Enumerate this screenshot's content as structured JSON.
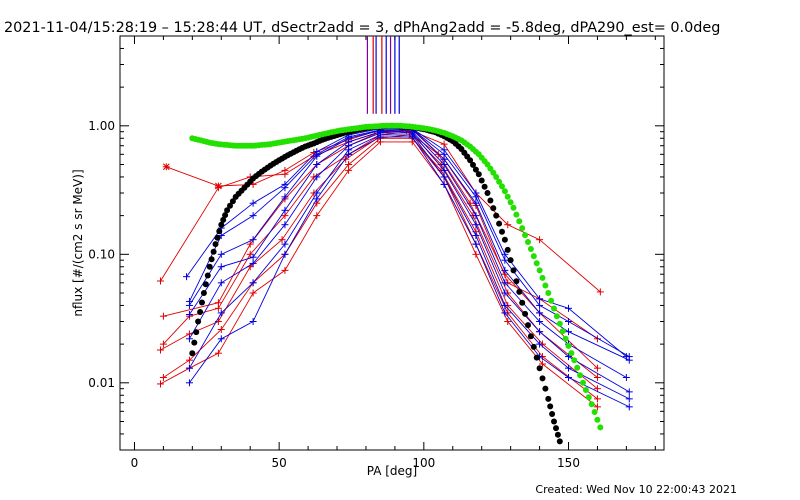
{
  "header": {
    "title": "2021-11-04/15:28:19 – 15:28:44 UT, dSectr2add = 3, dPhAng2add = -5.8deg, dPA290_est=  0.0deg"
  },
  "footer": {
    "created": "Created: Wed Nov 10 22:00:43 2021"
  },
  "colors": {
    "red": "#e00000",
    "blue": "#0000e0",
    "black": "#000000",
    "green": "#22e000",
    "purple": "#7a00a0"
  },
  "chart_data": {
    "type": "line",
    "xlabel": "PA [deg]",
    "ylabel": "nflux [#/(cm2 s sr MeV)]",
    "xlim": [
      -5,
      183
    ],
    "ylim": [
      0.003,
      5.0
    ],
    "yscale": "log",
    "xticks": [
      0,
      50,
      100,
      150
    ],
    "xtick_labels": [
      "0",
      "50",
      "100",
      "150"
    ],
    "yticks": [
      0.01,
      0.1,
      1.0
    ],
    "ytick_labels": [
      "0.01",
      "0.10",
      "1.00"
    ],
    "vertical_lines": [
      {
        "x": 80.5,
        "color": "purple"
      },
      {
        "x": 82.5,
        "color": "red"
      },
      {
        "x": 83.5,
        "color": "blue"
      },
      {
        "x": 85.5,
        "color": "red"
      },
      {
        "x": 87.0,
        "color": "blue"
      },
      {
        "x": 88.5,
        "color": "purple"
      },
      {
        "x": 90.0,
        "color": "blue"
      },
      {
        "x": 91.5,
        "color": "blue"
      }
    ],
    "black_curve": [
      [
        20,
        0.017
      ],
      [
        22,
        0.03
      ],
      [
        24,
        0.05
      ],
      [
        26,
        0.08
      ],
      [
        28,
        0.12
      ],
      [
        30,
        0.17
      ],
      [
        32,
        0.22
      ],
      [
        35,
        0.28
      ],
      [
        38,
        0.33
      ],
      [
        41,
        0.39
      ],
      [
        44,
        0.44
      ],
      [
        47,
        0.49
      ],
      [
        50,
        0.54
      ],
      [
        53,
        0.59
      ],
      [
        56,
        0.64
      ],
      [
        59,
        0.69
      ],
      [
        62,
        0.73
      ],
      [
        65,
        0.78
      ],
      [
        68,
        0.82
      ],
      [
        71,
        0.86
      ],
      [
        74,
        0.9
      ],
      [
        77,
        0.93
      ],
      [
        80,
        0.96
      ],
      [
        83,
        0.98
      ],
      [
        86,
        0.99
      ],
      [
        89,
        1.0
      ],
      [
        92,
        0.99
      ],
      [
        95,
        0.98
      ],
      [
        98,
        0.96
      ],
      [
        101,
        0.93
      ],
      [
        104,
        0.89
      ],
      [
        107,
        0.83
      ],
      [
        110,
        0.76
      ],
      [
        113,
        0.66
      ],
      [
        116,
        0.54
      ],
      [
        119,
        0.42
      ],
      [
        122,
        0.3
      ],
      [
        125,
        0.2
      ],
      [
        128,
        0.13
      ],
      [
        131,
        0.075
      ],
      [
        134,
        0.042
      ],
      [
        137,
        0.023
      ],
      [
        140,
        0.013
      ],
      [
        143,
        0.0075
      ],
      [
        145,
        0.005
      ],
      [
        147,
        0.0035
      ]
    ],
    "green_curve": [
      [
        20,
        0.8
      ],
      [
        23,
        0.77
      ],
      [
        26,
        0.74
      ],
      [
        29,
        0.72
      ],
      [
        32,
        0.71
      ],
      [
        35,
        0.7
      ],
      [
        38,
        0.7
      ],
      [
        41,
        0.7
      ],
      [
        44,
        0.71
      ],
      [
        47,
        0.72
      ],
      [
        50,
        0.74
      ],
      [
        53,
        0.76
      ],
      [
        56,
        0.78
      ],
      [
        59,
        0.8
      ],
      [
        62,
        0.83
      ],
      [
        65,
        0.86
      ],
      [
        68,
        0.89
      ],
      [
        71,
        0.92
      ],
      [
        74,
        0.94
      ],
      [
        77,
        0.96
      ],
      [
        80,
        0.98
      ],
      [
        83,
        0.99
      ],
      [
        86,
        1.0
      ],
      [
        89,
        1.0
      ],
      [
        92,
        1.0
      ],
      [
        95,
        0.99
      ],
      [
        98,
        0.97
      ],
      [
        101,
        0.95
      ],
      [
        104,
        0.92
      ],
      [
        107,
        0.88
      ],
      [
        110,
        0.83
      ],
      [
        113,
        0.77
      ],
      [
        116,
        0.69
      ],
      [
        119,
        0.6
      ],
      [
        122,
        0.5
      ],
      [
        125,
        0.4
      ],
      [
        128,
        0.31
      ],
      [
        131,
        0.23
      ],
      [
        134,
        0.16
      ],
      [
        137,
        0.11
      ],
      [
        140,
        0.075
      ],
      [
        143,
        0.05
      ],
      [
        146,
        0.033
      ],
      [
        149,
        0.022
      ],
      [
        152,
        0.015
      ],
      [
        155,
        0.01
      ],
      [
        158,
        0.0068
      ],
      [
        161,
        0.0045
      ]
    ],
    "series": [
      {
        "color": "red",
        "points": [
          [
            11,
            0.48
          ],
          [
            29,
            0.34
          ],
          [
            41,
            0.35
          ],
          [
            52,
            0.45
          ],
          [
            62,
            0.62
          ],
          [
            74,
            0.78
          ],
          [
            85,
            0.93
          ],
          [
            95,
            0.93
          ],
          [
            107,
            0.72
          ],
          [
            118,
            0.3
          ],
          [
            129,
            0.17
          ],
          [
            140,
            0.13
          ],
          [
            161,
            0.051
          ]
        ]
      },
      {
        "color": "red",
        "points": [
          [
            9,
            0.062
          ],
          [
            29,
            0.33
          ],
          [
            40,
            0.4
          ],
          [
            52,
            0.42
          ],
          [
            62,
            0.58
          ],
          [
            74,
            0.75
          ],
          [
            85,
            0.9
          ],
          [
            96,
            0.95
          ],
          [
            107,
            0.55
          ],
          [
            118,
            0.24
          ],
          [
            129,
            0.06
          ],
          [
            140,
            0.045
          ],
          [
            160,
            0.022
          ]
        ]
      },
      {
        "color": "red",
        "points": [
          [
            10,
            0.033
          ],
          [
            29,
            0.042
          ],
          [
            40,
            0.12
          ],
          [
            52,
            0.27
          ],
          [
            63,
            0.5
          ],
          [
            74,
            0.7
          ],
          [
            84,
            0.88
          ],
          [
            94,
            0.92
          ],
          [
            105,
            0.6
          ],
          [
            116,
            0.25
          ],
          [
            128,
            0.07
          ],
          [
            140,
            0.035
          ],
          [
            160,
            0.013
          ]
        ]
      },
      {
        "color": "red",
        "points": [
          [
            10,
            0.02
          ],
          [
            19,
            0.033
          ],
          [
            29,
            0.038
          ],
          [
            40,
            0.1
          ],
          [
            52,
            0.2
          ],
          [
            62,
            0.4
          ],
          [
            74,
            0.6
          ],
          [
            85,
            0.85
          ],
          [
            95,
            0.9
          ],
          [
            106,
            0.5
          ],
          [
            117,
            0.2
          ],
          [
            129,
            0.05
          ],
          [
            140,
            0.025
          ],
          [
            160,
            0.011
          ]
        ]
      },
      {
        "color": "red",
        "points": [
          [
            9,
            0.018
          ],
          [
            19,
            0.024
          ],
          [
            29,
            0.03
          ],
          [
            40,
            0.08
          ],
          [
            51,
            0.13
          ],
          [
            62,
            0.3
          ],
          [
            73,
            0.55
          ],
          [
            84,
            0.8
          ],
          [
            95,
            0.85
          ],
          [
            106,
            0.45
          ],
          [
            118,
            0.15
          ],
          [
            129,
            0.04
          ],
          [
            141,
            0.02
          ],
          [
            160,
            0.009
          ]
        ]
      },
      {
        "color": "red",
        "points": [
          [
            10,
            0.011
          ],
          [
            19,
            0.015
          ],
          [
            30,
            0.026
          ],
          [
            41,
            0.06
          ],
          [
            52,
            0.1
          ],
          [
            63,
            0.25
          ],
          [
            74,
            0.5
          ],
          [
            85,
            0.8
          ],
          [
            96,
            0.8
          ],
          [
            107,
            0.4
          ],
          [
            118,
            0.12
          ],
          [
            129,
            0.035
          ],
          [
            141,
            0.016
          ],
          [
            160,
            0.0075
          ]
        ]
      },
      {
        "color": "red",
        "points": [
          [
            9,
            0.0098
          ],
          [
            19,
            0.013
          ],
          [
            29,
            0.017
          ],
          [
            41,
            0.05
          ],
          [
            52,
            0.075
          ],
          [
            63,
            0.2
          ],
          [
            74,
            0.45
          ],
          [
            85,
            0.75
          ],
          [
            96,
            0.75
          ],
          [
            107,
            0.35
          ],
          [
            118,
            0.1
          ],
          [
            129,
            0.03
          ],
          [
            141,
            0.014
          ],
          [
            160,
            0.0065
          ]
        ]
      },
      {
        "color": "blue",
        "points": [
          [
            18,
            0.067
          ],
          [
            30,
            0.16
          ],
          [
            41,
            0.25
          ],
          [
            52,
            0.35
          ],
          [
            63,
            0.63
          ],
          [
            74,
            0.85
          ],
          [
            85,
            0.95
          ],
          [
            96,
            0.95
          ],
          [
            107,
            0.65
          ],
          [
            118,
            0.3
          ],
          [
            128,
            0.1
          ],
          [
            140,
            0.045
          ],
          [
            150,
            0.038
          ],
          [
            170,
            0.016
          ]
        ]
      },
      {
        "color": "blue",
        "points": [
          [
            19,
            0.043
          ],
          [
            30,
            0.14
          ],
          [
            41,
            0.2
          ],
          [
            52,
            0.33
          ],
          [
            63,
            0.6
          ],
          [
            74,
            0.82
          ],
          [
            85,
            0.93
          ],
          [
            96,
            0.94
          ],
          [
            107,
            0.6
          ],
          [
            118,
            0.28
          ],
          [
            128,
            0.09
          ],
          [
            140,
            0.04
          ],
          [
            150,
            0.03
          ],
          [
            171,
            0.016
          ]
        ]
      },
      {
        "color": "blue",
        "points": [
          [
            19,
            0.04
          ],
          [
            30,
            0.1
          ],
          [
            41,
            0.13
          ],
          [
            52,
            0.28
          ],
          [
            63,
            0.58
          ],
          [
            74,
            0.8
          ],
          [
            85,
            0.92
          ],
          [
            96,
            0.93
          ],
          [
            107,
            0.55
          ],
          [
            118,
            0.25
          ],
          [
            128,
            0.075
          ],
          [
            140,
            0.035
          ],
          [
            150,
            0.025
          ],
          [
            171,
            0.015
          ]
        ]
      },
      {
        "color": "blue",
        "points": [
          [
            19,
            0.034
          ],
          [
            30,
            0.08
          ],
          [
            41,
            0.095
          ],
          [
            52,
            0.22
          ],
          [
            63,
            0.5
          ],
          [
            74,
            0.75
          ],
          [
            85,
            0.9
          ],
          [
            96,
            0.9
          ],
          [
            107,
            0.5
          ],
          [
            118,
            0.2
          ],
          [
            128,
            0.06
          ],
          [
            140,
            0.03
          ],
          [
            150,
            0.02
          ],
          [
            170,
            0.011
          ]
        ]
      },
      {
        "color": "blue",
        "points": [
          [
            19,
            0.022
          ],
          [
            30,
            0.06
          ],
          [
            41,
            0.085
          ],
          [
            52,
            0.17
          ],
          [
            63,
            0.4
          ],
          [
            74,
            0.7
          ],
          [
            85,
            0.88
          ],
          [
            96,
            0.88
          ],
          [
            107,
            0.45
          ],
          [
            118,
            0.17
          ],
          [
            128,
            0.05
          ],
          [
            140,
            0.025
          ],
          [
            150,
            0.016
          ],
          [
            171,
            0.0085
          ]
        ]
      },
      {
        "color": "blue",
        "points": [
          [
            19,
            0.013
          ],
          [
            30,
            0.035
          ],
          [
            41,
            0.06
          ],
          [
            52,
            0.12
          ],
          [
            63,
            0.3
          ],
          [
            74,
            0.65
          ],
          [
            85,
            0.85
          ],
          [
            96,
            0.85
          ],
          [
            107,
            0.4
          ],
          [
            118,
            0.14
          ],
          [
            128,
            0.04
          ],
          [
            140,
            0.02
          ],
          [
            150,
            0.013
          ],
          [
            171,
            0.0075
          ]
        ]
      },
      {
        "color": "blue",
        "points": [
          [
            19,
            0.01
          ],
          [
            30,
            0.022
          ],
          [
            41,
            0.03
          ],
          [
            52,
            0.1
          ],
          [
            63,
            0.27
          ],
          [
            74,
            0.6
          ],
          [
            85,
            0.82
          ],
          [
            96,
            0.82
          ],
          [
            107,
            0.35
          ],
          [
            118,
            0.12
          ],
          [
            128,
            0.035
          ],
          [
            140,
            0.016
          ],
          [
            150,
            0.011
          ],
          [
            171,
            0.0065
          ]
        ]
      }
    ]
  }
}
